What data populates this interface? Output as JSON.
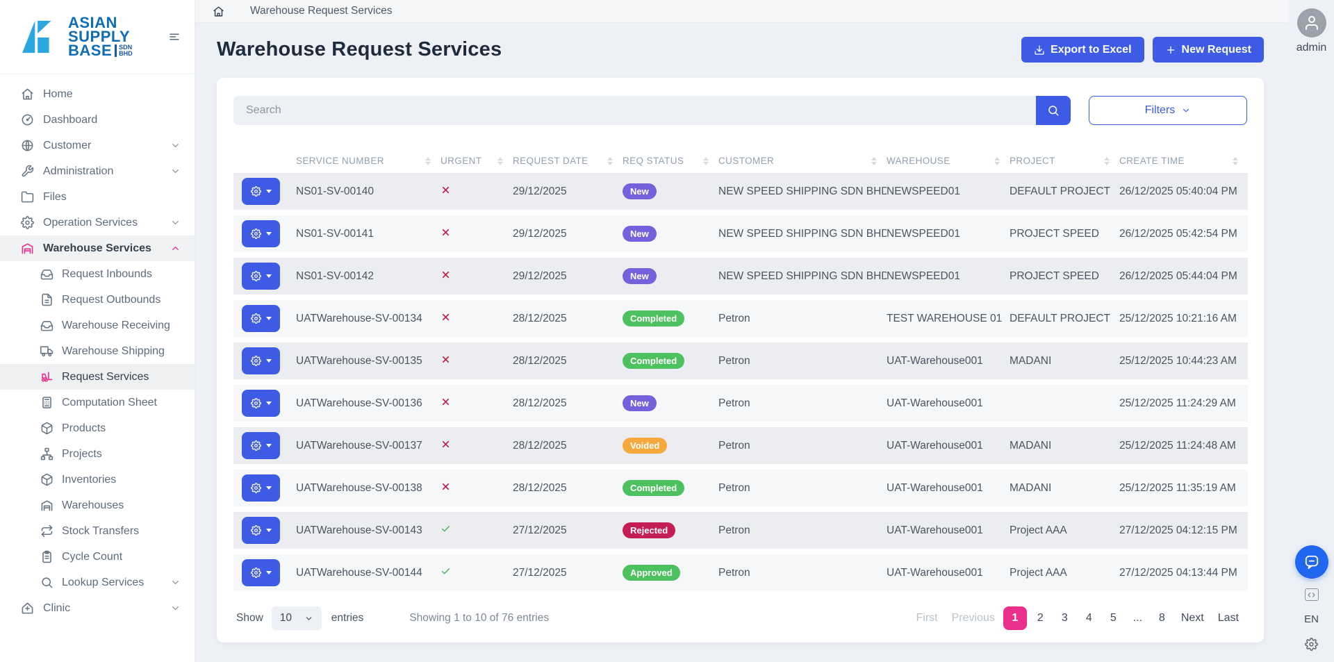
{
  "brand": {
    "line1": "ASIAN",
    "line2": "SUPPLY",
    "line3": "BASE",
    "suffix_top": "SDN",
    "suffix_bottom": "BHD"
  },
  "sidebar": {
    "items": [
      {
        "label": "Home",
        "icon": "home"
      },
      {
        "label": "Dashboard",
        "icon": "dashboard"
      },
      {
        "label": "Customer",
        "icon": "globe",
        "chevron": "down"
      },
      {
        "label": "Administration",
        "icon": "wrench",
        "chevron": "down"
      },
      {
        "label": "Files",
        "icon": "folder"
      },
      {
        "label": "Operation Services",
        "icon": "gear",
        "chevron": "down"
      },
      {
        "label": "Warehouse Services",
        "icon": "warehouse",
        "chevron": "up",
        "accent": true,
        "parent_active": true,
        "children": [
          {
            "label": "Request Inbounds",
            "icon": "inbox"
          },
          {
            "label": "Request Outbounds",
            "icon": "file-text"
          },
          {
            "label": "Warehouse Receiving",
            "icon": "inbox"
          },
          {
            "label": "Warehouse Shipping",
            "icon": "truck"
          },
          {
            "label": "Request Services",
            "icon": "forklift",
            "accent": true,
            "active": true
          },
          {
            "label": "Computation Sheet",
            "icon": "calculator"
          },
          {
            "label": "Products",
            "icon": "package"
          },
          {
            "label": "Projects",
            "icon": "sitemap"
          },
          {
            "label": "Inventories",
            "icon": "package"
          },
          {
            "label": "Warehouses",
            "icon": "warehouse"
          },
          {
            "label": "Stock Transfers",
            "icon": "transfer"
          },
          {
            "label": "Cycle Count",
            "icon": "clipboard"
          },
          {
            "label": "Lookup Services",
            "icon": "search",
            "chevron": "down"
          }
        ]
      },
      {
        "label": "Clinic",
        "icon": "clinic",
        "chevron": "down"
      }
    ]
  },
  "breadcrumb": {
    "current": "Warehouse Request Services"
  },
  "page": {
    "title": "Warehouse Request Services"
  },
  "toolbar": {
    "export_label": "Export to Excel",
    "new_label": "New Request"
  },
  "search": {
    "placeholder": "Search"
  },
  "filters": {
    "label": "Filters"
  },
  "table": {
    "columns": [
      "SERVICE NUMBER",
      "URGENT",
      "REQUEST DATE",
      "REQ STATUS",
      "CUSTOMER",
      "WAREHOUSE",
      "PROJECT",
      "CREATE TIME"
    ],
    "rows": [
      {
        "service_number": "NS01-SV-00140",
        "urgent": false,
        "request_date": "29/12/2025",
        "status": "New",
        "customer": "NEW SPEED SHIPPING SDN BHD",
        "warehouse": "NEWSPEED01",
        "project": "DEFAULT PROJECT",
        "create_time": "26/12/2025 05:40:04 PM"
      },
      {
        "service_number": "NS01-SV-00141",
        "urgent": false,
        "request_date": "29/12/2025",
        "status": "New",
        "customer": "NEW SPEED SHIPPING SDN BHD",
        "warehouse": "NEWSPEED01",
        "project": "PROJECT SPEED",
        "create_time": "26/12/2025 05:42:54 PM"
      },
      {
        "service_number": "NS01-SV-00142",
        "urgent": false,
        "request_date": "29/12/2025",
        "status": "New",
        "customer": "NEW SPEED SHIPPING SDN BHD",
        "warehouse": "NEWSPEED01",
        "project": "PROJECT SPEED",
        "create_time": "26/12/2025 05:44:04 PM"
      },
      {
        "service_number": "UATWarehouse-SV-00134",
        "urgent": false,
        "request_date": "28/12/2025",
        "status": "Completed",
        "customer": "Petron",
        "warehouse": "TEST WAREHOUSE 01",
        "project": "DEFAULT PROJECT",
        "create_time": "25/12/2025 10:21:16 AM"
      },
      {
        "service_number": "UATWarehouse-SV-00135",
        "urgent": false,
        "request_date": "28/12/2025",
        "status": "Completed",
        "customer": "Petron",
        "warehouse": "UAT-Warehouse001",
        "project": "MADANI",
        "create_time": "25/12/2025 10:44:23 AM"
      },
      {
        "service_number": "UATWarehouse-SV-00136",
        "urgent": false,
        "request_date": "28/12/2025",
        "status": "New",
        "customer": "Petron",
        "warehouse": "UAT-Warehouse001",
        "project": "",
        "create_time": "25/12/2025 11:24:29 AM"
      },
      {
        "service_number": "UATWarehouse-SV-00137",
        "urgent": false,
        "request_date": "28/12/2025",
        "status": "Voided",
        "customer": "Petron",
        "warehouse": "UAT-Warehouse001",
        "project": "MADANI",
        "create_time": "25/12/2025 11:24:48 AM"
      },
      {
        "service_number": "UATWarehouse-SV-00138",
        "urgent": false,
        "request_date": "28/12/2025",
        "status": "Completed",
        "customer": "Petron",
        "warehouse": "UAT-Warehouse001",
        "project": "MADANI",
        "create_time": "25/12/2025 11:35:19 AM"
      },
      {
        "service_number": "UATWarehouse-SV-00143",
        "urgent": true,
        "request_date": "27/12/2025",
        "status": "Rejected",
        "customer": "Petron",
        "warehouse": "UAT-Warehouse001",
        "project": "Project AAA",
        "create_time": "27/12/2025 04:12:15 PM"
      },
      {
        "service_number": "UATWarehouse-SV-00144",
        "urgent": true,
        "request_date": "27/12/2025",
        "status": "Approved",
        "customer": "Petron",
        "warehouse": "UAT-Warehouse001",
        "project": "Project AAA",
        "create_time": "27/12/2025 04:13:44 PM"
      }
    ]
  },
  "status_colors": {
    "New": "#7561db",
    "Completed": "#4dc05f",
    "Approved": "#4dc05f",
    "Voided": "#f5a93c",
    "Rejected": "#c51e57"
  },
  "footer": {
    "show_label": "Show",
    "page_size": "10",
    "entries_label": "entries",
    "summary": "Showing 1 to 10 of 76 entries",
    "pagination": [
      {
        "label": "First",
        "state": "disabled"
      },
      {
        "label": "Previous",
        "state": "disabled"
      },
      {
        "label": "1",
        "state": "active"
      },
      {
        "label": "2",
        "state": "normal"
      },
      {
        "label": "3",
        "state": "normal"
      },
      {
        "label": "4",
        "state": "normal"
      },
      {
        "label": "5",
        "state": "normal"
      },
      {
        "label": "...",
        "state": "normal"
      },
      {
        "label": "8",
        "state": "normal"
      },
      {
        "label": "Next",
        "state": "normal"
      },
      {
        "label": "Last",
        "state": "normal"
      }
    ]
  },
  "user": {
    "name": "admin"
  },
  "widgets": {
    "language": "EN"
  },
  "colors": {
    "primary": "#3d5be5",
    "accent_pink": "#ea2f8c"
  }
}
